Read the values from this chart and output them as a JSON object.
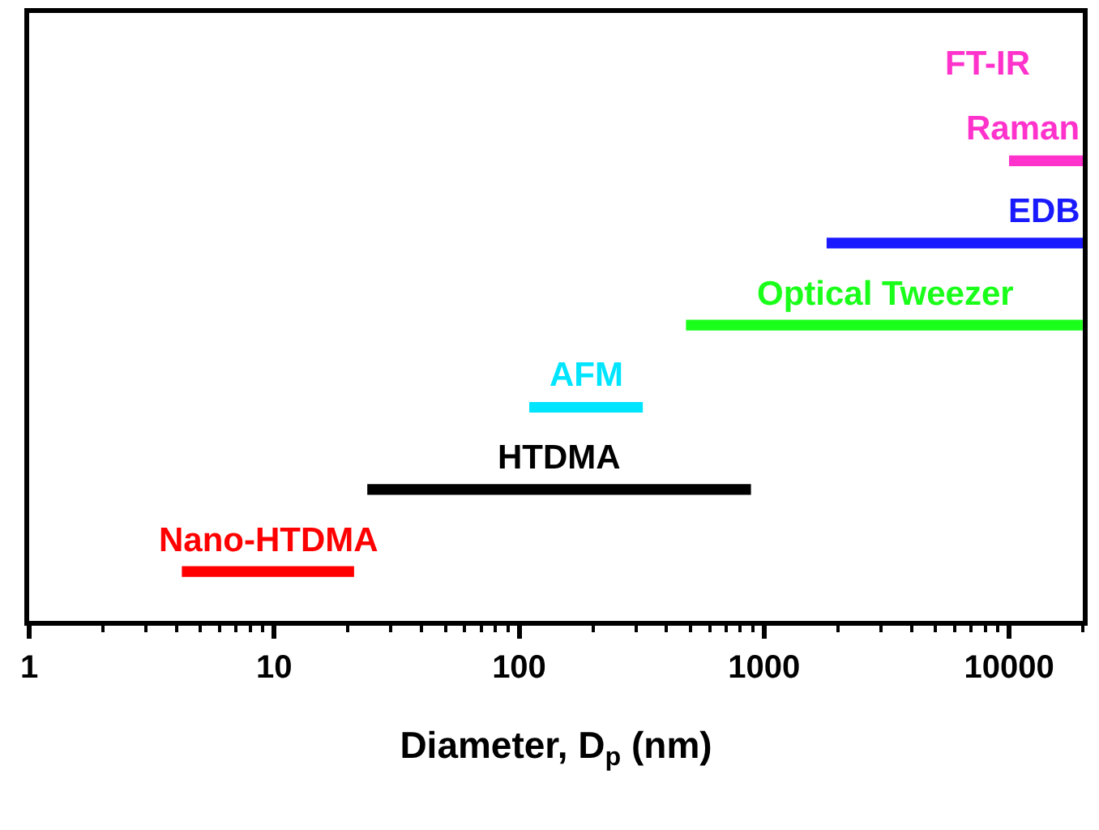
{
  "chart_data": {
    "type": "bar",
    "orientation": "horizontal",
    "log": "x",
    "xlabel": "Diameter, D$_{p}$ (nm)",
    "categories": [
      "FT-IR",
      "Raman",
      "EDB",
      "Optical Tweezer",
      "AFM",
      "HTDMA",
      "Nano-HTDMA"
    ],
    "values": [
      null,
      10000,
      18200,
      19500,
      210,
      860,
      17
    ],
    "base": [
      null,
      10000,
      1800,
      480,
      110,
      24,
      4.2
    ],
    "colors": [
      "#ff33cc",
      "#ff33cc",
      "#1a1aff",
      "#1aff1a",
      "#00e5ff",
      "#000000",
      "#ff0000"
    ],
    "xlim": [
      1,
      20000
    ],
    "xticks": [
      1,
      10,
      100,
      1000,
      10000
    ],
    "legend": false
  }
}
